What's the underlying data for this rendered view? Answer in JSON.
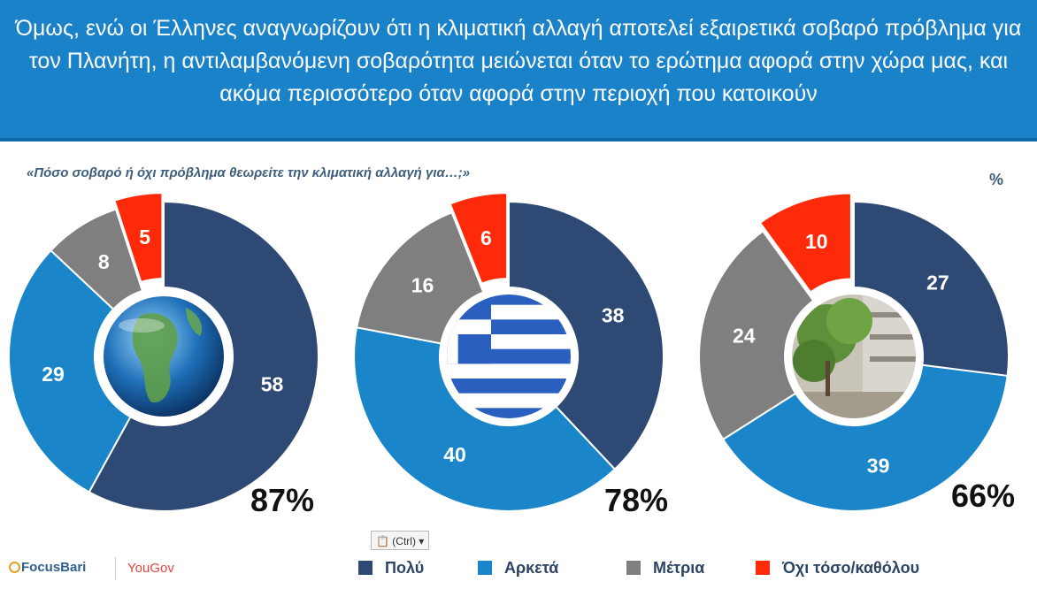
{
  "header": {
    "title": "Όμως, ενώ οι Έλληνες αναγνωρίζουν ότι η κλιματική αλλαγή αποτελεί εξαιρετικά σοβαρό πρόβλημα για τον Πλανήτη, η αντιλαμβανόμενη σοβαρότητα μειώνεται όταν το ερώτημα αφορά στην χώρα μας, και ακόμα περισσότερο όταν αφορά στην περιοχή που κατοικούν"
  },
  "question": "«Πόσο σοβαρό ή όχι πρόβλημα θεωρείτε την κλιματική αλλαγή για…;»",
  "unit": "%",
  "colors": {
    "header_bg": "#1a82c8",
    "poly": "#2e4a74",
    "arketa": "#1a86c9",
    "metria": "#7f7f7f",
    "oxi": "#ff2a0a"
  },
  "chart_data": [
    {
      "type": "pie",
      "center_image": "earth-globe",
      "categories": [
        "Πολύ",
        "Αρκετά",
        "Μέτρια",
        "Όχι τόσο/καθόλου"
      ],
      "values": [
        58,
        29,
        8,
        5
      ],
      "total_label": "87%"
    },
    {
      "type": "pie",
      "center_image": "greek-flag",
      "categories": [
        "Πολύ",
        "Αρκετά",
        "Μέτρια",
        "Όχι τόσο/καθόλου"
      ],
      "values": [
        38,
        40,
        16,
        6
      ],
      "total_label": "78%"
    },
    {
      "type": "pie",
      "center_image": "tree-lined-street",
      "categories": [
        "Πολύ",
        "Αρκετά",
        "Μέτρια",
        "Όχι τόσο/καθόλου"
      ],
      "values": [
        27,
        39,
        24,
        10
      ],
      "total_label": "66%"
    }
  ],
  "legend": [
    {
      "label": "Πολύ",
      "color": "#2e4a74"
    },
    {
      "label": "Αρκετά",
      "color": "#1a86c9"
    },
    {
      "label": "Μέτρια",
      "color": "#7f7f7f"
    },
    {
      "label": "Όχι τόσο/καθόλου",
      "color": "#ff2a0a"
    }
  ],
  "paste_options": {
    "label": "(Ctrl)",
    "icon": "clipboard-icon"
  },
  "logos": {
    "focus": "FocusBari",
    "yougov": "YouGov"
  }
}
